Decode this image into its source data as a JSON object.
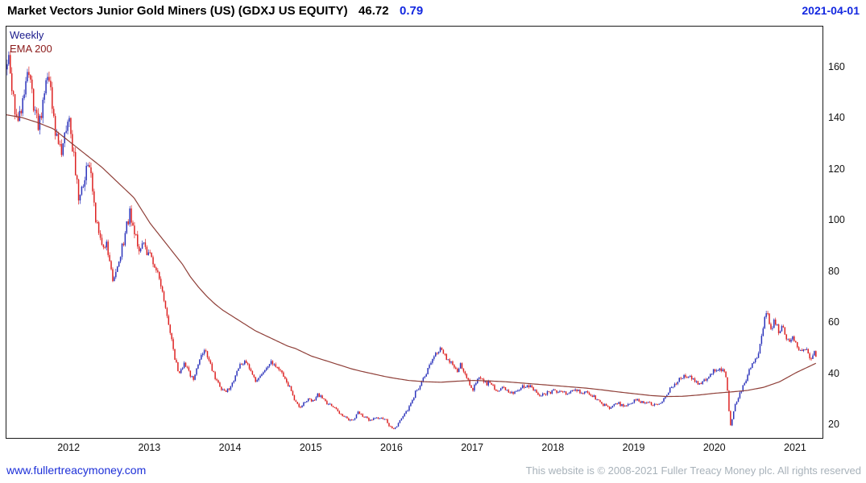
{
  "header": {
    "title": "Market Vectors Junior Gold Miners (US) (GDXJ US EQUITY)",
    "last_price": "46.72",
    "change": "0.79",
    "date": "2021-04-01"
  },
  "legend": {
    "timeframe": "Weekly",
    "overlay": "EMA 200"
  },
  "footer": {
    "website": "www.fullertreacymoney.com",
    "copyright": "This website is © 2008-2021 Fuller Treacy Money plc. All rights reserved"
  },
  "colors": {
    "up_candle": "#2b33bb",
    "down_candle": "#dd2222",
    "ema_line": "#8f3f38",
    "change_text": "#1328e0",
    "date_text": "#1328e0",
    "weekly_label": "#1a1a8c",
    "ema_label": "#8b1a1a",
    "link": "#1c2fd8",
    "copyright_text": "#a8b2ba",
    "axis_text": "#111111"
  },
  "chart_data": {
    "type": "candlestick",
    "timeframe": "weekly",
    "title": "Market Vectors Junior Gold Miners (US) (GDXJ US EQUITY)",
    "last_close": 46.72,
    "change": 0.79,
    "as_of_date": "2021-04-01",
    "grid": false,
    "legend_position": "top-left",
    "y_axis_side": "right",
    "xlim": [
      2011.22,
      2021.33
    ],
    "ylim": [
      15,
      176
    ],
    "y_ticks": [
      20,
      40,
      60,
      80,
      100,
      120,
      140,
      160
    ],
    "x_ticks": [
      2012,
      2013,
      2014,
      2015,
      2016,
      2017,
      2018,
      2019,
      2020,
      2021
    ],
    "close_anchors": [
      [
        2011.21,
        158
      ],
      [
        2011.25,
        166
      ],
      [
        2011.29,
        150
      ],
      [
        2011.33,
        143
      ],
      [
        2011.37,
        139
      ],
      [
        2011.42,
        148
      ],
      [
        2011.46,
        154
      ],
      [
        2011.5,
        157
      ],
      [
        2011.54,
        149
      ],
      [
        2011.58,
        141
      ],
      [
        2011.62,
        137
      ],
      [
        2011.66,
        144
      ],
      [
        2011.71,
        152
      ],
      [
        2011.75,
        155
      ],
      [
        2011.79,
        146
      ],
      [
        2011.83,
        134
      ],
      [
        2011.87,
        129
      ],
      [
        2011.91,
        127
      ],
      [
        2011.95,
        134
      ],
      [
        2012.0,
        138
      ],
      [
        2012.04,
        129
      ],
      [
        2012.08,
        117
      ],
      [
        2012.12,
        109
      ],
      [
        2012.17,
        114
      ],
      [
        2012.21,
        120
      ],
      [
        2012.25,
        122
      ],
      [
        2012.29,
        111
      ],
      [
        2012.33,
        100
      ],
      [
        2012.37,
        93
      ],
      [
        2012.42,
        89
      ],
      [
        2012.46,
        93
      ],
      [
        2012.5,
        83
      ],
      [
        2012.54,
        77
      ],
      [
        2012.58,
        80
      ],
      [
        2012.62,
        86
      ],
      [
        2012.67,
        92
      ],
      [
        2012.71,
        98
      ],
      [
        2012.75,
        103
      ],
      [
        2012.79,
        99
      ],
      [
        2012.83,
        93
      ],
      [
        2012.87,
        89
      ],
      [
        2012.92,
        91
      ],
      [
        2012.96,
        88
      ],
      [
        2013.0,
        86
      ],
      [
        2013.04,
        83
      ],
      [
        2013.08,
        81
      ],
      [
        2013.12,
        76
      ],
      [
        2013.17,
        70
      ],
      [
        2013.21,
        64
      ],
      [
        2013.25,
        57
      ],
      [
        2013.29,
        49
      ],
      [
        2013.33,
        43
      ],
      [
        2013.37,
        40
      ],
      [
        2013.42,
        44
      ],
      [
        2013.46,
        42
      ],
      [
        2013.5,
        39
      ],
      [
        2013.54,
        38
      ],
      [
        2013.58,
        42
      ],
      [
        2013.62,
        46
      ],
      [
        2013.67,
        49
      ],
      [
        2013.71,
        47
      ],
      [
        2013.75,
        43
      ],
      [
        2013.79,
        40
      ],
      [
        2013.83,
        37
      ],
      [
        2013.87,
        35
      ],
      [
        2013.92,
        33
      ],
      [
        2013.96,
        34
      ],
      [
        2014.0,
        35
      ],
      [
        2014.04,
        38
      ],
      [
        2014.08,
        41
      ],
      [
        2014.12,
        44
      ],
      [
        2014.17,
        45
      ],
      [
        2014.21,
        43
      ],
      [
        2014.25,
        41
      ],
      [
        2014.29,
        38
      ],
      [
        2014.33,
        37
      ],
      [
        2014.37,
        39
      ],
      [
        2014.42,
        41
      ],
      [
        2014.46,
        43
      ],
      [
        2014.5,
        45
      ],
      [
        2014.54,
        44
      ],
      [
        2014.58,
        42
      ],
      [
        2014.62,
        41
      ],
      [
        2014.67,
        39
      ],
      [
        2014.71,
        36
      ],
      [
        2014.75,
        33
      ],
      [
        2014.79,
        30
      ],
      [
        2014.83,
        28
      ],
      [
        2014.87,
        27
      ],
      [
        2014.92,
        29
      ],
      [
        2014.96,
        31
      ],
      [
        2015.0,
        29
      ],
      [
        2015.04,
        30
      ],
      [
        2015.08,
        32
      ],
      [
        2015.12,
        31
      ],
      [
        2015.17,
        29
      ],
      [
        2015.21,
        28
      ],
      [
        2015.25,
        28
      ],
      [
        2015.29,
        27
      ],
      [
        2015.33,
        25
      ],
      [
        2015.37,
        24
      ],
      [
        2015.42,
        23
      ],
      [
        2015.46,
        22
      ],
      [
        2015.5,
        22
      ],
      [
        2015.54,
        23
      ],
      [
        2015.58,
        25
      ],
      [
        2015.62,
        24
      ],
      [
        2015.67,
        23
      ],
      [
        2015.71,
        22
      ],
      [
        2015.75,
        22
      ],
      [
        2015.79,
        23
      ],
      [
        2015.83,
        22
      ],
      [
        2015.87,
        23
      ],
      [
        2015.92,
        22
      ],
      [
        2015.96,
        20
      ],
      [
        2016.0,
        19
      ],
      [
        2016.02,
        18.5
      ],
      [
        2016.04,
        19
      ],
      [
        2016.08,
        21
      ],
      [
        2016.12,
        23
      ],
      [
        2016.17,
        25
      ],
      [
        2016.21,
        27
      ],
      [
        2016.25,
        30
      ],
      [
        2016.29,
        33
      ],
      [
        2016.33,
        35
      ],
      [
        2016.37,
        37
      ],
      [
        2016.42,
        40
      ],
      [
        2016.46,
        43
      ],
      [
        2016.5,
        45
      ],
      [
        2016.54,
        48
      ],
      [
        2016.58,
        50
      ],
      [
        2016.62,
        49
      ],
      [
        2016.65,
        47
      ],
      [
        2016.69,
        45
      ],
      [
        2016.73,
        44
      ],
      [
        2016.77,
        42
      ],
      [
        2016.81,
        41
      ],
      [
        2016.85,
        44
      ],
      [
        2016.88,
        42
      ],
      [
        2016.92,
        39
      ],
      [
        2016.96,
        36
      ],
      [
        2017.0,
        34
      ],
      [
        2017.04,
        37
      ],
      [
        2017.08,
        39
      ],
      [
        2017.12,
        38
      ],
      [
        2017.17,
        36
      ],
      [
        2017.21,
        37
      ],
      [
        2017.25,
        35
      ],
      [
        2017.29,
        33
      ],
      [
        2017.33,
        34
      ],
      [
        2017.37,
        35
      ],
      [
        2017.42,
        34
      ],
      [
        2017.46,
        33
      ],
      [
        2017.5,
        32
      ],
      [
        2017.54,
        33
      ],
      [
        2017.58,
        34
      ],
      [
        2017.62,
        35
      ],
      [
        2017.67,
        36
      ],
      [
        2017.71,
        35
      ],
      [
        2017.75,
        34
      ],
      [
        2017.79,
        33
      ],
      [
        2017.83,
        32
      ],
      [
        2017.87,
        32
      ],
      [
        2017.92,
        33
      ],
      [
        2017.96,
        33
      ],
      [
        2018.0,
        34
      ],
      [
        2018.04,
        33
      ],
      [
        2018.08,
        33
      ],
      [
        2018.12,
        33
      ],
      [
        2018.17,
        32
      ],
      [
        2018.21,
        33
      ],
      [
        2018.25,
        33
      ],
      [
        2018.29,
        34
      ],
      [
        2018.33,
        33
      ],
      [
        2018.37,
        33
      ],
      [
        2018.42,
        33
      ],
      [
        2018.46,
        32
      ],
      [
        2018.5,
        31
      ],
      [
        2018.54,
        30
      ],
      [
        2018.58,
        29
      ],
      [
        2018.62,
        28
      ],
      [
        2018.67,
        27
      ],
      [
        2018.71,
        27
      ],
      [
        2018.75,
        28
      ],
      [
        2018.79,
        29
      ],
      [
        2018.83,
        28
      ],
      [
        2018.87,
        27
      ],
      [
        2018.92,
        28
      ],
      [
        2018.96,
        29
      ],
      [
        2019.0,
        30
      ],
      [
        2019.04,
        30
      ],
      [
        2019.08,
        29
      ],
      [
        2019.12,
        29
      ],
      [
        2019.17,
        29
      ],
      [
        2019.21,
        28
      ],
      [
        2019.25,
        28
      ],
      [
        2019.29,
        28
      ],
      [
        2019.33,
        29
      ],
      [
        2019.37,
        30
      ],
      [
        2019.42,
        33
      ],
      [
        2019.46,
        35
      ],
      [
        2019.5,
        36
      ],
      [
        2019.54,
        38
      ],
      [
        2019.58,
        38
      ],
      [
        2019.62,
        40
      ],
      [
        2019.67,
        39
      ],
      [
        2019.71,
        38
      ],
      [
        2019.75,
        37
      ],
      [
        2019.79,
        36
      ],
      [
        2019.83,
        37
      ],
      [
        2019.87,
        38
      ],
      [
        2019.92,
        39
      ],
      [
        2019.96,
        41
      ],
      [
        2020.0,
        42
      ],
      [
        2020.04,
        41
      ],
      [
        2020.08,
        42
      ],
      [
        2020.1,
        43
      ],
      [
        2020.13,
        40
      ],
      [
        2020.15,
        34
      ],
      [
        2020.17,
        26
      ],
      [
        2020.19,
        20
      ],
      [
        2020.22,
        24
      ],
      [
        2020.25,
        28
      ],
      [
        2020.29,
        31
      ],
      [
        2020.33,
        34
      ],
      [
        2020.37,
        37
      ],
      [
        2020.42,
        41
      ],
      [
        2020.46,
        44
      ],
      [
        2020.5,
        46
      ],
      [
        2020.54,
        49
      ],
      [
        2020.58,
        55
      ],
      [
        2020.6,
        59
      ],
      [
        2020.63,
        65
      ],
      [
        2020.65,
        64
      ],
      [
        2020.67,
        60
      ],
      [
        2020.69,
        58
      ],
      [
        2020.71,
        59
      ],
      [
        2020.73,
        61
      ],
      [
        2020.75,
        60
      ],
      [
        2020.77,
        58
      ],
      [
        2020.79,
        56
      ],
      [
        2020.81,
        57
      ],
      [
        2020.83,
        58
      ],
      [
        2020.85,
        57
      ],
      [
        2020.87,
        55
      ],
      [
        2020.9,
        53
      ],
      [
        2020.92,
        52
      ],
      [
        2020.94,
        54
      ],
      [
        2020.96,
        55
      ],
      [
        2020.98,
        54
      ],
      [
        2021.0,
        53
      ],
      [
        2021.02,
        50
      ],
      [
        2021.04,
        48
      ],
      [
        2021.06,
        49
      ],
      [
        2021.08,
        50
      ],
      [
        2021.1,
        51
      ],
      [
        2021.12,
        50
      ],
      [
        2021.15,
        49
      ],
      [
        2021.17,
        47
      ],
      [
        2021.19,
        46
      ],
      [
        2021.21,
        47
      ],
      [
        2021.23,
        48
      ],
      [
        2021.25,
        46.72
      ]
    ],
    "ema_anchors": [
      [
        2011.21,
        141.5
      ],
      [
        2011.4,
        140.5
      ],
      [
        2011.6,
        138.5
      ],
      [
        2011.8,
        136
      ],
      [
        2012.0,
        131
      ],
      [
        2012.2,
        126
      ],
      [
        2012.4,
        121
      ],
      [
        2012.6,
        115
      ],
      [
        2012.8,
        109
      ],
      [
        2012.9,
        104
      ],
      [
        2013.0,
        99
      ],
      [
        2013.1,
        95
      ],
      [
        2013.2,
        91
      ],
      [
        2013.3,
        87
      ],
      [
        2013.4,
        83
      ],
      [
        2013.5,
        78
      ],
      [
        2013.6,
        74
      ],
      [
        2013.7,
        70.5
      ],
      [
        2013.8,
        67.5
      ],
      [
        2013.9,
        65
      ],
      [
        2014.0,
        63
      ],
      [
        2014.1,
        61
      ],
      [
        2014.2,
        59
      ],
      [
        2014.3,
        57
      ],
      [
        2014.4,
        55.5
      ],
      [
        2014.5,
        54
      ],
      [
        2014.6,
        52.5
      ],
      [
        2014.7,
        51
      ],
      [
        2014.8,
        50
      ],
      [
        2014.9,
        48.5
      ],
      [
        2015.0,
        47
      ],
      [
        2015.1,
        46
      ],
      [
        2015.2,
        45
      ],
      [
        2015.3,
        44
      ],
      [
        2015.4,
        43
      ],
      [
        2015.5,
        42
      ],
      [
        2015.6,
        41.2
      ],
      [
        2015.7,
        40.5
      ],
      [
        2015.8,
        39.8
      ],
      [
        2015.9,
        39.1
      ],
      [
        2016.0,
        38.5
      ],
      [
        2016.2,
        37.5
      ],
      [
        2016.4,
        37
      ],
      [
        2016.6,
        36.8
      ],
      [
        2016.8,
        37.2
      ],
      [
        2017.0,
        37.5
      ],
      [
        2017.2,
        37.3
      ],
      [
        2017.4,
        37
      ],
      [
        2017.6,
        36.5
      ],
      [
        2017.8,
        36
      ],
      [
        2018.0,
        35.5
      ],
      [
        2018.2,
        35
      ],
      [
        2018.4,
        34.5
      ],
      [
        2018.6,
        33.8
      ],
      [
        2018.8,
        33
      ],
      [
        2019.0,
        32.3
      ],
      [
        2019.2,
        31.6
      ],
      [
        2019.4,
        31.2
      ],
      [
        2019.6,
        31.3
      ],
      [
        2019.8,
        31.8
      ],
      [
        2020.0,
        32.5
      ],
      [
        2020.2,
        33
      ],
      [
        2020.4,
        33.6
      ],
      [
        2020.6,
        34.8
      ],
      [
        2020.8,
        37
      ],
      [
        2021.0,
        40.5
      ],
      [
        2021.1,
        42
      ],
      [
        2021.2,
        43.5
      ],
      [
        2021.3,
        45
      ]
    ]
  }
}
